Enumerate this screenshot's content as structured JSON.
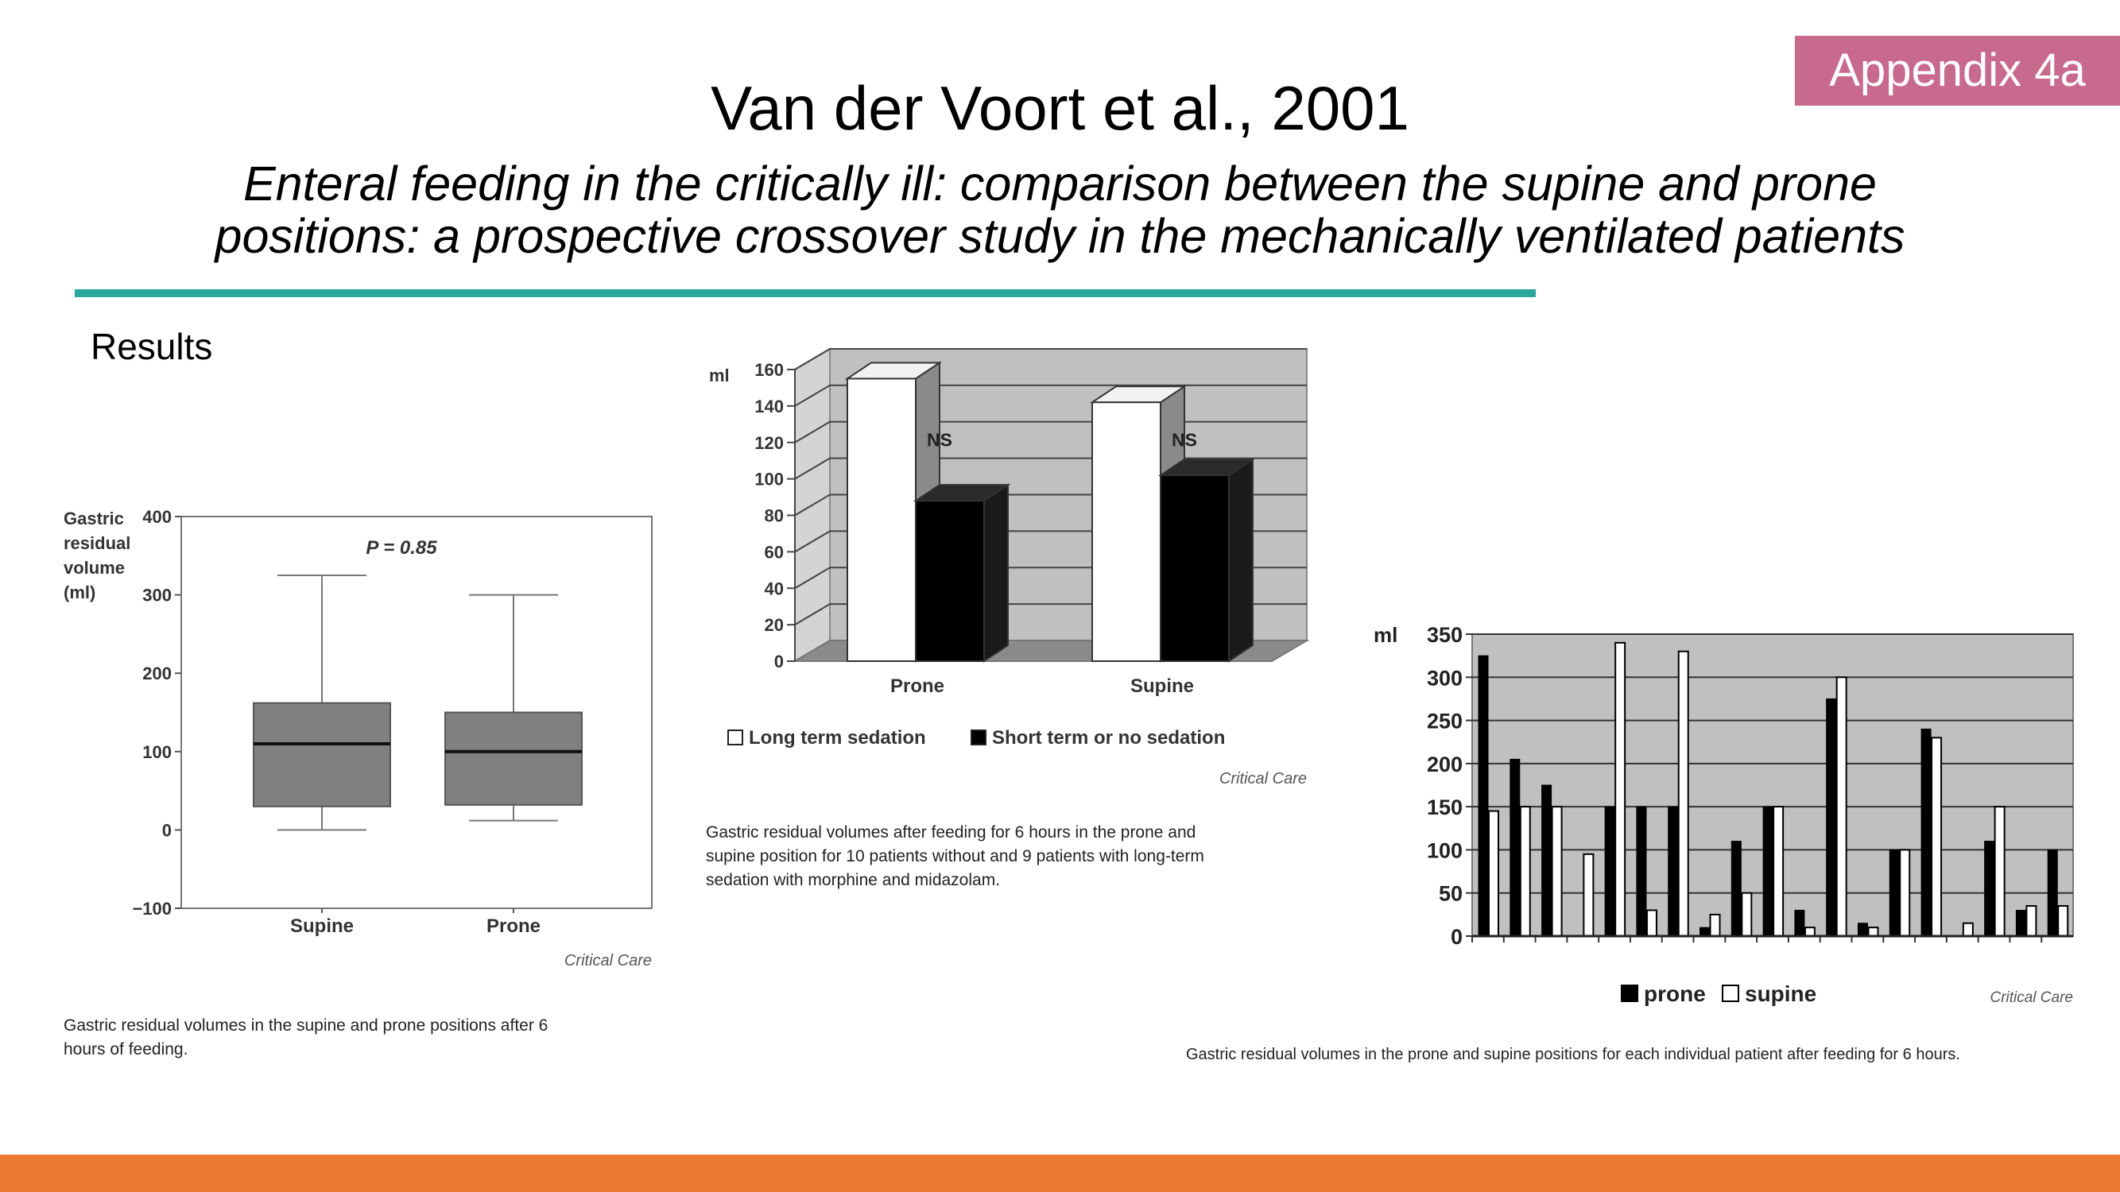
{
  "badge": "Appendix 4a",
  "title": "Van der Voort et al., 2001",
  "subtitle": {
    "line1": "Enteral feeding in the critically ill: comparison between the supine and prone",
    "line2": "positions: a prospective crossover study in the mechanically ventilated patients"
  },
  "section_label": "Results",
  "colors": {
    "badge": "#c8698e",
    "rule": "#2ba89c",
    "footer": "#ec7a35",
    "plot_bg": "#c0c0c0",
    "box_fill": "#808080"
  },
  "chart_data": [
    {
      "type": "boxplot",
      "ylabel": [
        "Gastric",
        "residual",
        "volume",
        "(ml)"
      ],
      "ylim": [
        -100,
        400
      ],
      "yticks": [
        -100,
        0,
        100,
        200,
        300,
        400
      ],
      "tick_labels": [
        "−100",
        "0",
        "100",
        "200",
        "300",
        "400"
      ],
      "categories": [
        "Supine",
        "Prone"
      ],
      "boxes": [
        {
          "min": 0,
          "q1": 30,
          "median": 110,
          "q3": 162,
          "max": 325
        },
        {
          "min": 12,
          "q1": 32,
          "median": 100,
          "q3": 150,
          "max": 300
        }
      ],
      "annotation": "P = 0.85",
      "source": "Critical Care",
      "caption": [
        "Gastric residual volumes in the supine and prone positions after 6",
        "hours of feeding."
      ]
    },
    {
      "type": "bar",
      "ylabel": "ml",
      "ylim": [
        0,
        160
      ],
      "yticks": [
        0,
        20,
        40,
        60,
        80,
        100,
        120,
        140,
        160
      ],
      "categories": [
        "Prone",
        "Supine"
      ],
      "series": [
        {
          "name": "Long term sedation",
          "values": [
            155,
            142
          ]
        },
        {
          "name": "Short term or no sedation",
          "values": [
            88,
            102
          ]
        }
      ],
      "annotations": [
        "NS",
        "NS"
      ],
      "legend_position": "bottom",
      "source": "Critical Care",
      "caption": [
        "Gastric residual volumes after feeding for 6 hours in the prone and",
        "supine position for 10 patients without and 9 patients with long-term",
        "sedation with morphine and midazolam."
      ]
    },
    {
      "type": "bar",
      "ylabel": "ml",
      "ylim": [
        0,
        350
      ],
      "yticks": [
        0,
        50,
        100,
        150,
        200,
        250,
        300,
        350
      ],
      "series": [
        {
          "name": "prone",
          "values": [
            325,
            205,
            175,
            0,
            150,
            150,
            150,
            10,
            110,
            150,
            30,
            275,
            15,
            100,
            240,
            0,
            110,
            30,
            100
          ]
        },
        {
          "name": "supine",
          "values": [
            145,
            150,
            150,
            95,
            340,
            30,
            330,
            25,
            50,
            150,
            10,
            300,
            10,
            100,
            230,
            15,
            150,
            35,
            35
          ]
        }
      ],
      "legend_position": "bottom",
      "source": "Critical Care",
      "caption": "Gastric residual volumes in the prone and supine positions for each individual patient after feeding for 6 hours."
    }
  ]
}
